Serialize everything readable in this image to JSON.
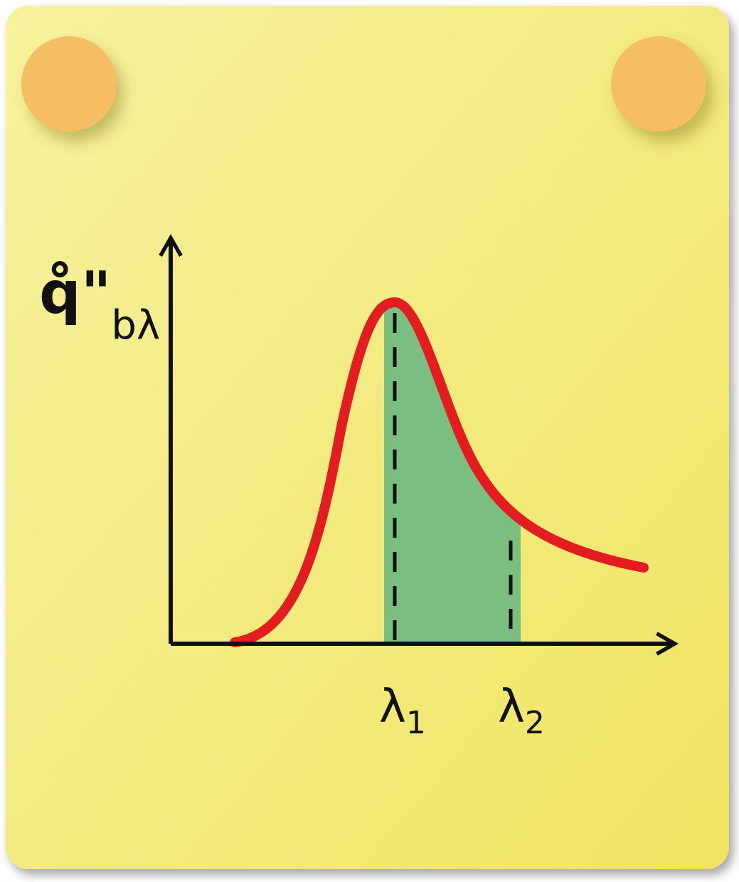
{
  "y_label": {
    "symbol": "q̊\"",
    "subscript": "bλ"
  },
  "markers": [
    {
      "symbol": "λ",
      "subscript": "1"
    },
    {
      "symbol": "λ",
      "subscript": "2"
    }
  ]
}
